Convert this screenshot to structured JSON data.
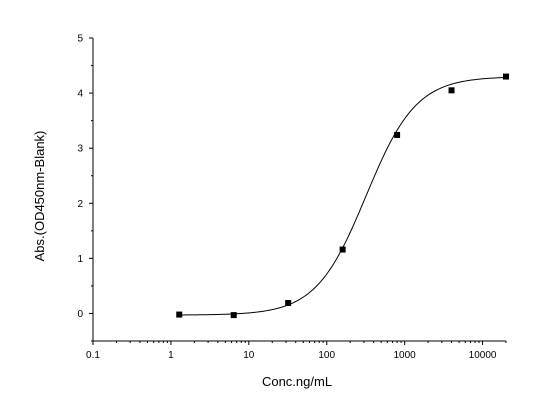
{
  "chart_data": {
    "type": "scatter",
    "title": "",
    "xlabel": "Conc.ng/mL",
    "ylabel": "Abs.(OD450nm-Blank)",
    "x_scale": "log",
    "xlim": [
      0.1,
      20000
    ],
    "ylim": [
      -0.5,
      5
    ],
    "x_ticks": [
      0.1,
      1,
      10,
      100,
      1000,
      10000
    ],
    "x_tick_labels": [
      "0.1",
      "1",
      "10",
      "100",
      "1000",
      "10000"
    ],
    "y_ticks": [
      0,
      1,
      2,
      3,
      4,
      5
    ],
    "y_tick_labels": [
      "0",
      "1",
      "2",
      "3",
      "4",
      "5"
    ],
    "grid": false,
    "legend": "none",
    "series": [
      {
        "x": [
          1.28,
          6.4,
          32,
          160,
          800,
          4000,
          20000
        ],
        "y": [
          -0.02,
          -0.03,
          0.19,
          1.16,
          3.24,
          4.05,
          4.3
        ]
      }
    ],
    "fit_curve": {
      "type": "4PL",
      "bottom": -0.03,
      "top": 4.3,
      "ec50": 320,
      "hill": 1.35
    },
    "colors": {
      "marker": "#000000",
      "line": "#000000",
      "axis": "#000000"
    }
  }
}
